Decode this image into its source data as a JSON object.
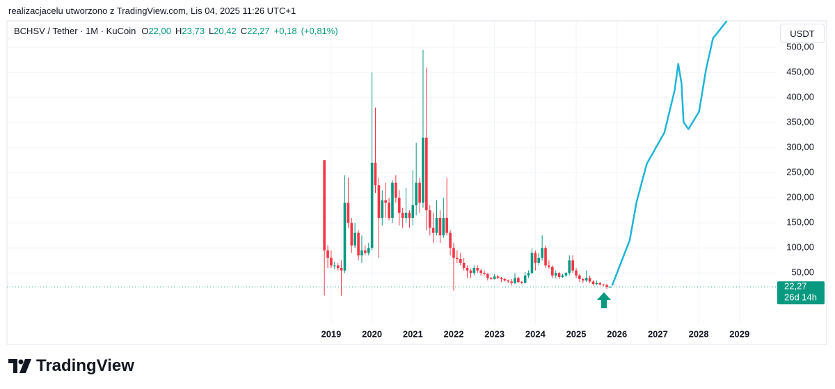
{
  "header": "realizacjacelu utworzono z TradingView.com, Lis 04, 2025 11:26 UTC+1",
  "logo": "TradingView",
  "currency_button": "USDT",
  "chart_data": {
    "type": "candlestick",
    "legend": {
      "symbol": "BCHSV / Tether · 1M · KuCoin",
      "items": [
        {
          "key": "O",
          "value": 22.0,
          "label": "22,00"
        },
        {
          "key": "H",
          "value": 23.73,
          "label": "23,73"
        },
        {
          "key": "L",
          "value": 20.42,
          "label": "20,42"
        },
        {
          "key": "C",
          "value": 22.27,
          "label": "22,27"
        }
      ],
      "change": {
        "value": 0.18,
        "label": "+0,18"
      },
      "change_pct": {
        "value": 0.81,
        "label": "(+0,81%)"
      }
    },
    "candles": {
      "up_color": "#089981",
      "down_color": "#f23645",
      "x": [
        2018.833,
        2018.917,
        2019,
        2019.083,
        2019.167,
        2019.25,
        2019.333,
        2019.417,
        2019.5,
        2019.583,
        2019.667,
        2019.75,
        2019.833,
        2019.917,
        2020,
        2020.083,
        2020.167,
        2020.25,
        2020.333,
        2020.417,
        2020.5,
        2020.583,
        2020.667,
        2020.75,
        2020.833,
        2020.917,
        2021,
        2021.083,
        2021.167,
        2021.25,
        2021.333,
        2021.417,
        2021.5,
        2021.583,
        2021.667,
        2021.75,
        2021.833,
        2021.917,
        2022,
        2022.083,
        2022.167,
        2022.25,
        2022.333,
        2022.417,
        2022.5,
        2022.583,
        2022.667,
        2022.75,
        2022.833,
        2022.917,
        2023,
        2023.083,
        2023.167,
        2023.25,
        2023.333,
        2023.417,
        2023.5,
        2023.583,
        2023.667,
        2023.75,
        2023.833,
        2023.917,
        2024,
        2024.083,
        2024.167,
        2024.25,
        2024.333,
        2024.417,
        2024.5,
        2024.583,
        2024.667,
        2024.75,
        2024.833,
        2024.917,
        2025,
        2025.083,
        2025.167,
        2025.25,
        2025.333,
        2025.417,
        2025.5,
        2025.583,
        2025.667,
        2025.75,
        2025.833
      ],
      "open": [
        275,
        95,
        80,
        65,
        65,
        60,
        55,
        190,
        150,
        105,
        130,
        85,
        95,
        90,
        100,
        270,
        225,
        160,
        195,
        190,
        160,
        230,
        200,
        170,
        160,
        170,
        160,
        185,
        230,
        190,
        320,
        175,
        140,
        130,
        160,
        125,
        160,
        130,
        100,
        80,
        78,
        70,
        60,
        55,
        50,
        60,
        55,
        50,
        48,
        40,
        38,
        43,
        40,
        38,
        35,
        33,
        30,
        40,
        32,
        30,
        45,
        50,
        90,
        70,
        80,
        100,
        65,
        62,
        45,
        50,
        42,
        45,
        50,
        75,
        55,
        45,
        38,
        35,
        40,
        33,
        28,
        30,
        27,
        26,
        22
      ],
      "high": [
        275,
        105,
        95,
        72,
        70,
        75,
        245,
        240,
        160,
        150,
        135,
        125,
        105,
        110,
        450,
        380,
        240,
        215,
        230,
        200,
        235,
        245,
        215,
        180,
        220,
        175,
        255,
        310,
        240,
        495,
        460,
        185,
        170,
        195,
        175,
        200,
        240,
        135,
        110,
        95,
        90,
        80,
        65,
        58,
        65,
        65,
        58,
        55,
        50,
        42,
        48,
        46,
        42,
        40,
        37,
        38,
        50,
        42,
        34,
        52,
        55,
        100,
        95,
        90,
        125,
        105,
        75,
        65,
        55,
        52,
        48,
        52,
        85,
        85,
        60,
        48,
        40,
        55,
        45,
        35,
        35,
        32,
        28,
        28,
        23.73
      ],
      "low": [
        5,
        60,
        60,
        58,
        55,
        5,
        50,
        140,
        90,
        100,
        75,
        70,
        85,
        85,
        95,
        210,
        80,
        145,
        160,
        155,
        150,
        190,
        145,
        140,
        150,
        140,
        145,
        165,
        170,
        180,
        135,
        125,
        110,
        125,
        110,
        120,
        125,
        85,
        15,
        70,
        65,
        55,
        40,
        40,
        45,
        50,
        45,
        45,
        35,
        36,
        37,
        38,
        32,
        33,
        30,
        25,
        28,
        30,
        28,
        29,
        40,
        48,
        55,
        65,
        75,
        60,
        58,
        40,
        40,
        38,
        40,
        42,
        45,
        50,
        40,
        32,
        30,
        32,
        30,
        25,
        26,
        25,
        23,
        18,
        20.42
      ],
      "close": [
        95,
        80,
        65,
        65,
        60,
        55,
        190,
        150,
        105,
        130,
        85,
        95,
        90,
        100,
        270,
        225,
        160,
        195,
        190,
        160,
        230,
        200,
        170,
        160,
        170,
        160,
        185,
        230,
        190,
        320,
        175,
        140,
        130,
        160,
        125,
        160,
        130,
        100,
        80,
        78,
        70,
        60,
        55,
        50,
        60,
        55,
        50,
        48,
        40,
        38,
        43,
        40,
        38,
        35,
        33,
        30,
        40,
        32,
        30,
        45,
        50,
        90,
        70,
        80,
        100,
        65,
        62,
        45,
        50,
        42,
        45,
        50,
        75,
        55,
        45,
        38,
        35,
        40,
        33,
        28,
        30,
        27,
        26,
        22,
        22.27
      ]
    },
    "projection": {
      "color": "#1fb4d8",
      "x": [
        2025.88,
        2026.31,
        2026.48,
        2026.73,
        2027.16,
        2027.41,
        2027.5,
        2027.58,
        2027.63,
        2027.75,
        2028.01,
        2028.18,
        2028.35,
        2028.69
      ],
      "values": [
        25,
        115,
        192,
        268,
        330,
        414,
        467,
        428,
        351,
        337,
        372,
        456,
        518,
        553
      ]
    },
    "last_price": {
      "value": 22.27,
      "label": "22,27",
      "countdown": "26d 14h",
      "color": "#089981"
    },
    "xlim": [
      2011.06,
      2029.89
    ],
    "xticks": [
      2019,
      2020,
      2021,
      2022,
      2023,
      2024,
      2025,
      2026,
      2027,
      2028,
      2029
    ],
    "ylim": [
      -51,
      553
    ],
    "yticks": [
      {
        "value": 50,
        "label": "50,00"
      },
      {
        "value": 100,
        "label": "100,00"
      },
      {
        "value": 150,
        "label": "150,00"
      },
      {
        "value": 200,
        "label": "200,00"
      },
      {
        "value": 250,
        "label": "250,00"
      },
      {
        "value": 300,
        "label": "300,00"
      },
      {
        "value": 350,
        "label": "350,00"
      },
      {
        "value": 400,
        "label": "400,00"
      },
      {
        "value": 450,
        "label": "450,00"
      },
      {
        "value": 500,
        "label": "500,00"
      }
    ],
    "grid": true
  }
}
